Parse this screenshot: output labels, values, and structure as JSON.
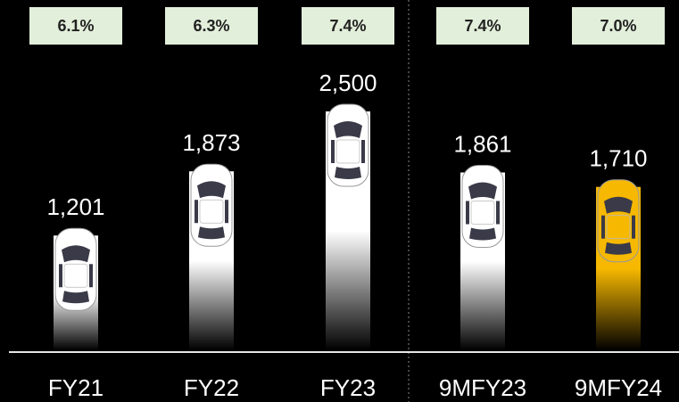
{
  "chart_data": {
    "type": "bar",
    "categories": [
      "FY21",
      "FY22",
      "FY23",
      "9MFY23",
      "9MFY24"
    ],
    "values": [
      1201,
      1873,
      2500,
      1861,
      1710
    ],
    "value_labels": [
      "1,201",
      "1,873",
      "2,500",
      "1,861",
      "1,710"
    ],
    "badge_labels": [
      "6.1%",
      "6.3%",
      "7.4%",
      "7.4%",
      "7.0%"
    ],
    "colors": [
      "#ffffff",
      "#ffffff",
      "#ffffff",
      "#ffffff",
      "#f6b800"
    ],
    "ylim": [
      0,
      2500
    ]
  }
}
